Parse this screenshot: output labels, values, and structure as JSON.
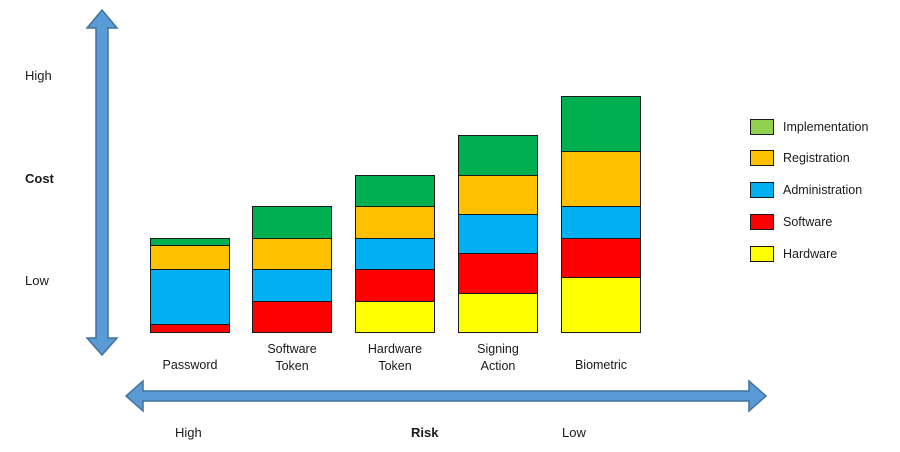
{
  "cost_axis": {
    "title": "Cost",
    "high": "High",
    "low": "Low"
  },
  "risk_axis": {
    "title": "Risk",
    "high": "High",
    "low": "Low"
  },
  "colors": {
    "arrow_fill": "#5B9BD5",
    "arrow_stroke": "#41719C",
    "Implementation": "#00B050",
    "Registration": "#FFC000",
    "Administration": "#00B0F0",
    "Software": "#FF0000",
    "Hardware": "#FFFF00",
    "legend_implementation": "#92D050"
  },
  "legend": [
    "Implementation",
    "Registration",
    "Administration",
    "Software",
    "Hardware"
  ],
  "chart_data": {
    "type": "bar",
    "stacked": true,
    "categories": [
      "Password",
      "Software\nToken",
      "Hardware\nToken",
      "Signing\nAction",
      "Biometric"
    ],
    "series": [
      {
        "name": "Hardware",
        "values": [
          0,
          0,
          1,
          1.25,
          1.75
        ]
      },
      {
        "name": "Software",
        "values": [
          0.25,
          1,
          1,
          1.25,
          1.25
        ]
      },
      {
        "name": "Administration",
        "values": [
          1.75,
          1,
          1,
          1.25,
          1
        ]
      },
      {
        "name": "Registration",
        "values": [
          0.75,
          1,
          1,
          1.25,
          1.75
        ]
      },
      {
        "name": "Implementation",
        "values": [
          0.25,
          1,
          1,
          1.25,
          1.75
        ]
      }
    ]
  }
}
